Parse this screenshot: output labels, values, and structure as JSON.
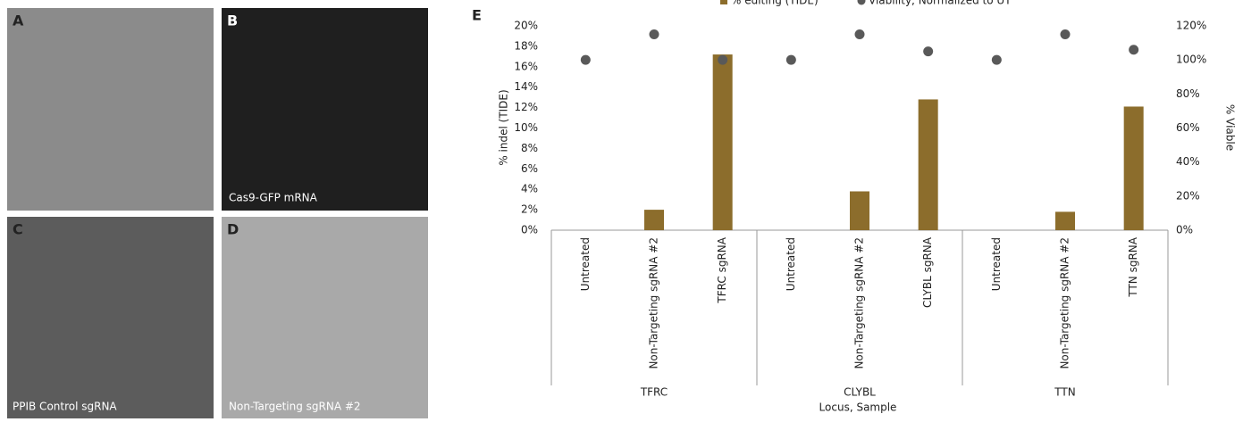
{
  "panels": [
    {
      "letter": "A"
    },
    {
      "letter": "B",
      "caption": "Cas9-GFP mRNA"
    },
    {
      "letter": "C",
      "caption": "PPIB Control sgRNA"
    },
    {
      "letter": "D",
      "caption": "Non-Targeting sgRNA #2"
    }
  ],
  "chart_data": {
    "type": "bar",
    "panel": "E",
    "categories": [
      "Untreated",
      "Non-Targeting sgRNA #2",
      "TFRC sgRNA",
      "Untreated",
      "Non-Targeting sgRNA #2",
      "CLYBL sgRNA",
      "Untreated",
      "Non-Targeting sgRNA #2",
      "TTN sgRNA"
    ],
    "groups": [
      "TFRC",
      "CLYBL",
      "TTN"
    ],
    "x_label": "Locus, Sample",
    "y_label": "% indel (TIDE)",
    "y2_label": "% Viable",
    "series": [
      {
        "name": "% editing (TIDE)",
        "color": "#8c6d2c",
        "values": [
          0,
          2,
          17.2,
          0,
          3.8,
          12.8,
          0,
          1.8,
          12.1
        ]
      },
      {
        "name": "Viability, Normalized to UT",
        "color": "#595959",
        "axis": "y2",
        "values": [
          100,
          115,
          100,
          100,
          115,
          105,
          100,
          115,
          106
        ]
      }
    ],
    "ylim": [
      0,
      20
    ],
    "yticks": [
      {
        "value": 0,
        "label": "0%"
      },
      {
        "value": 2,
        "label": "2%"
      },
      {
        "value": 4,
        "label": "4%"
      },
      {
        "value": 6,
        "label": "6%"
      },
      {
        "value": 8,
        "label": "8%"
      },
      {
        "value": 10,
        "label": "10%"
      },
      {
        "value": 12,
        "label": "12%"
      },
      {
        "value": 14,
        "label": "14%"
      },
      {
        "value": 16,
        "label": "16%"
      },
      {
        "value": 18,
        "label": "18%"
      },
      {
        "value": 20,
        "label": "20%"
      }
    ],
    "y2lim": [
      0,
      120
    ],
    "y2ticks": [
      {
        "value": 0,
        "label": "0%"
      },
      {
        "value": 20,
        "label": "20%"
      },
      {
        "value": 40,
        "label": "40%"
      },
      {
        "value": 60,
        "label": "60%"
      },
      {
        "value": 80,
        "label": "80%"
      },
      {
        "value": 100,
        "label": "100%"
      },
      {
        "value": 120,
        "label": "120%"
      }
    ]
  }
}
